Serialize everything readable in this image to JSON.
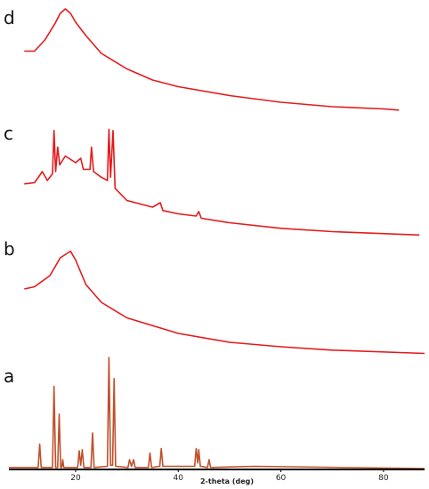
{
  "chart_data": {
    "type": "line",
    "x_label": "2-theta (deg)",
    "xlim": [
      7,
      88
    ],
    "xticks": [
      20,
      40,
      60,
      80
    ],
    "ylim": [
      0,
      100
    ],
    "series": [
      {
        "name": "d",
        "color": "#e41a1c",
        "x": [
          10,
          12,
          14,
          16,
          17,
          18,
          19,
          20,
          22,
          25,
          30,
          35,
          40,
          50,
          60,
          70,
          80,
          83
        ],
        "values": [
          58,
          58,
          68,
          83,
          92,
          96,
          92,
          84,
          72,
          56,
          42,
          32,
          26,
          18,
          12,
          8,
          6,
          5
        ]
      },
      {
        "name": "c",
        "color": "#e41a1c",
        "x": [
          10,
          12,
          13.5,
          14.5,
          15.5,
          15.8,
          16.1,
          16.5,
          16.9,
          18,
          20,
          21,
          21.5,
          22.8,
          23.1,
          23.5,
          25,
          26.2,
          26.5,
          26.8,
          27.3,
          27.7,
          30,
          35,
          36.5,
          37,
          40,
          43.5,
          44,
          44.5,
          50,
          60,
          70,
          87
        ],
        "values": [
          49,
          50,
          60,
          52,
          58,
          97,
          60,
          82,
          66,
          74,
          68,
          72,
          62,
          62,
          82,
          60,
          55,
          52,
          98,
          55,
          97,
          45,
          34,
          28,
          32,
          25,
          22,
          20,
          24,
          18,
          14,
          9,
          6,
          3
        ]
      },
      {
        "name": "b",
        "color": "#e41a1c",
        "x": [
          10,
          12,
          15,
          17,
          19,
          20,
          22,
          25,
          30,
          40,
          50,
          60,
          70,
          88
        ],
        "values": [
          60,
          62,
          72,
          88,
          94,
          86,
          64,
          48,
          34,
          20,
          12,
          8,
          5,
          2
        ]
      },
      {
        "name": "a",
        "color": "#c0502a",
        "x": [
          7,
          12.7,
          13,
          13.3,
          15.5,
          15.8,
          16.1,
          16.5,
          16.8,
          17.1,
          17.3,
          17.5,
          17.7,
          20.4,
          20.7,
          21.0,
          21.3,
          21.6,
          23.0,
          23.3,
          23.6,
          26.2,
          26.5,
          26.8,
          27.2,
          27.5,
          27.8,
          30.2,
          30.5,
          30.9,
          31.3,
          31.6,
          34.2,
          34.5,
          34.8,
          36.4,
          36.7,
          37.0,
          43.2,
          43.5,
          43.8,
          44.0,
          44.3,
          45.7,
          46,
          46.3,
          55,
          88
        ],
        "values": [
          1,
          1,
          22,
          1,
          1,
          74,
          1,
          1,
          49,
          1,
          1,
          8,
          1,
          1,
          16,
          3,
          17,
          1,
          1,
          32,
          1,
          2,
          100,
          3,
          3,
          81,
          2,
          1,
          8,
          2,
          8,
          1,
          1,
          14,
          1,
          2,
          18,
          2,
          2,
          18,
          5,
          17,
          2,
          1,
          8,
          1,
          2,
          0
        ]
      }
    ]
  }
}
